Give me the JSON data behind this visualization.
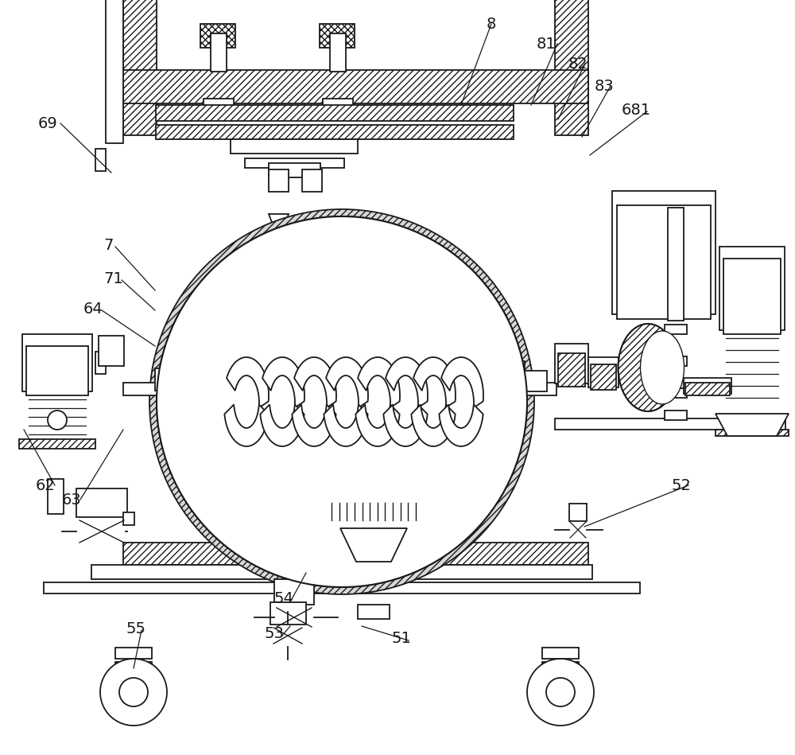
{
  "bg": "#ffffff",
  "lc": "#1a1a1a",
  "figsize": [
    10.0,
    9.49
  ],
  "dpi": 100,
  "labels": [
    [
      "8",
      612,
      30
    ],
    [
      "81",
      675,
      55
    ],
    [
      "82",
      715,
      80
    ],
    [
      "83",
      748,
      108
    ],
    [
      "681",
      782,
      138
    ],
    [
      "69",
      48,
      155
    ],
    [
      "7",
      130,
      308
    ],
    [
      "71",
      130,
      350
    ],
    [
      "64",
      105,
      388
    ],
    [
      "62",
      45,
      610
    ],
    [
      "63",
      78,
      628
    ],
    [
      "52",
      845,
      610
    ],
    [
      "54",
      345,
      752
    ],
    [
      "55",
      158,
      790
    ],
    [
      "53",
      332,
      797
    ],
    [
      "51",
      493,
      803
    ]
  ]
}
